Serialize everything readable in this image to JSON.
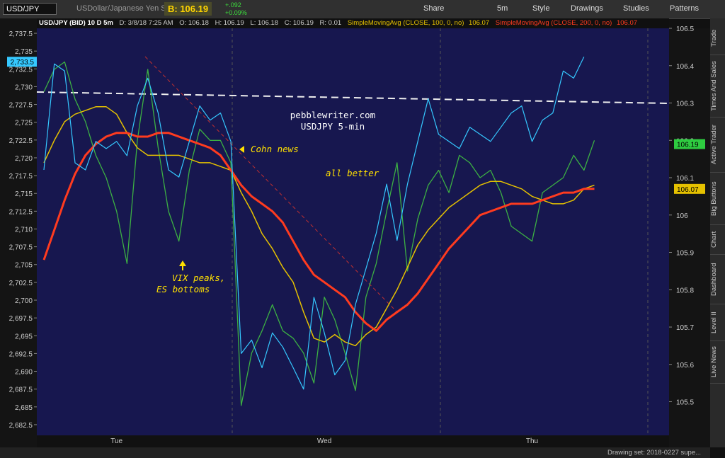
{
  "toolbar": {
    "symbol": "USD/JPY",
    "description": "USDollar/Japanese Yen Spot",
    "bid": "B: 106.19",
    "change": "+.092",
    "change_pct": "+0.09%",
    "buttons": [
      "Share",
      "5m",
      "Style",
      "Drawings",
      "Studies",
      "Patterns"
    ]
  },
  "header": {
    "items": [
      "USD/JPY (BID) 10 D 5m",
      "D: 3/8/18 7:25 AM",
      "O: 106.18",
      "H: 106.19",
      "L: 106.18",
      "C: 106.19",
      "R: 0.01"
    ],
    "sma100_value": "106.07",
    "sma200_value": "106.07"
  },
  "side_tabs": [
    "Trade",
    "Times And Sales",
    "Active Trader",
    "Big Buttons",
    "Chart",
    "Dashboard",
    "Level II",
    "Live News"
  ],
  "status": "Drawing set: 2018-0227 supe...",
  "chart_data": {
    "type": "line",
    "categories": [
      null,
      null,
      null,
      null,
      null,
      null,
      null,
      "Tue",
      null,
      null,
      null,
      null,
      null,
      null,
      null,
      null,
      null,
      null,
      null,
      null,
      null,
      null,
      null,
      null,
      null,
      null,
      null,
      "Wed",
      null,
      null,
      null,
      null,
      null,
      null,
      null,
      null,
      null,
      null,
      null,
      null,
      null,
      null,
      null,
      null,
      null,
      null,
      null,
      "Thu",
      null,
      null,
      null,
      null,
      null,
      null,
      null,
      null,
      null,
      null,
      null,
      null,
      null
    ],
    "series": [
      {
        "color": "#3cb043",
        "values": [
          106.33,
          106.39,
          106.41,
          106.31,
          106.25,
          106.16,
          106.1,
          106.01,
          105.87,
          106.2,
          106.39,
          106.18,
          106.01,
          105.93,
          106.12,
          106.23,
          106.2,
          106.2,
          106.14,
          105.49,
          105.63,
          105.69,
          105.76,
          105.69,
          105.67,
          105.63,
          105.55,
          105.78,
          105.72,
          105.63,
          105.53,
          105.78,
          105.87,
          106.01,
          106.14,
          105.85,
          105.99,
          106.08,
          106.12,
          106.06,
          106.16,
          106.14,
          106.1,
          106.12,
          106.06,
          105.97,
          105.95,
          105.93,
          106.06,
          106.08,
          106.1,
          106.16,
          106.12,
          106.2,
          null,
          null,
          null,
          null,
          null,
          null,
          null
        ]
      },
      {
        "name": "SimpleMovingAvg (CLOSE, 100, 0, no)",
        "color": "#e5c100",
        "values": [
          106.14,
          106.2,
          106.25,
          106.27,
          106.28,
          106.29,
          106.29,
          106.27,
          106.22,
          106.18,
          106.16,
          106.16,
          106.16,
          106.16,
          106.15,
          106.14,
          106.14,
          106.13,
          106.12,
          106.06,
          106.01,
          105.95,
          105.91,
          105.86,
          105.82,
          105.74,
          105.67,
          105.66,
          105.68,
          105.66,
          105.65,
          105.68,
          105.7,
          105.75,
          105.8,
          105.86,
          105.92,
          105.96,
          105.99,
          106.02,
          106.04,
          106.06,
          106.08,
          106.09,
          106.09,
          106.08,
          106.07,
          106.05,
          106.04,
          106.03,
          106.03,
          106.04,
          106.07,
          106.08,
          null,
          null,
          null,
          null,
          null,
          null,
          null
        ]
      },
      {
        "name": "SimpleMovingAvg (CLOSE, 200, 0, no)",
        "color": "#ff3b1f",
        "values": [
          105.88,
          105.96,
          106.04,
          106.11,
          106.16,
          106.19,
          106.21,
          106.22,
          106.22,
          106.21,
          106.21,
          106.22,
          106.22,
          106.21,
          106.2,
          106.19,
          106.18,
          106.16,
          106.12,
          106.08,
          106.05,
          106.03,
          106.01,
          105.98,
          105.93,
          105.88,
          105.84,
          105.82,
          105.8,
          105.78,
          105.74,
          105.71,
          105.69,
          105.72,
          105.74,
          105.76,
          105.79,
          105.83,
          105.87,
          105.91,
          105.94,
          105.97,
          106.0,
          106.01,
          106.02,
          106.03,
          106.03,
          106.03,
          106.04,
          106.05,
          106.06,
          106.06,
          106.07,
          106.07,
          null,
          null,
          null,
          null,
          null,
          null,
          null
        ]
      },
      {
        "color": "#35c8ff",
        "axis": "y2",
        "values": [
          2718.3,
          2733.2,
          2732.2,
          2719.3,
          2718.3,
          2722.3,
          2721.3,
          2722.3,
          2720.3,
          2727.3,
          2731.2,
          2726.3,
          2718.3,
          2717.3,
          2722.3,
          2727.3,
          2725.3,
          2726.3,
          2722.3,
          2692.5,
          2694.4,
          2690.5,
          2695.4,
          2693.4,
          2690.5,
          2687.5,
          2700.4,
          2695.4,
          2689.5,
          2691.5,
          2699.4,
          2704.4,
          2709.4,
          2716.3,
          2708.4,
          2716.3,
          2722.3,
          2728.3,
          2723.3,
          2722.3,
          2721.3,
          2724.3,
          2723.3,
          2722.3,
          2724.3,
          2726.3,
          2727.3,
          2722.3,
          2725.3,
          2726.3,
          2732.2,
          2731.2,
          2734.2,
          null,
          null,
          null,
          null,
          null,
          null,
          null,
          null
        ]
      }
    ],
    "ylim": [
      105.41,
      106.5
    ],
    "yticks": [
      106.5,
      106.4,
      106.3,
      106.2,
      106.1,
      106,
      105.9,
      105.8,
      105.7,
      105.6,
      105.5
    ],
    "y2lim": [
      2681,
      2738.2
    ],
    "y2ticks": [
      {
        "value": 2737.5,
        "label": "2,737.5"
      },
      {
        "value": 2735,
        "label": "2,735"
      },
      {
        "value": 2732.5,
        "label": "2,732.5"
      },
      {
        "value": 2730,
        "label": "2,730"
      },
      {
        "value": 2727.5,
        "label": "2,727.5"
      },
      {
        "value": 2725,
        "label": "2,725"
      },
      {
        "value": 2722.5,
        "label": "2,722.5"
      },
      {
        "value": 2720,
        "label": "2,720"
      },
      {
        "value": 2717.5,
        "label": "2,717.5"
      },
      {
        "value": 2715,
        "label": "2,715"
      },
      {
        "value": 2712.5,
        "label": "2,712.5"
      },
      {
        "value": 2710,
        "label": "2,710"
      },
      {
        "value": 2707.5,
        "label": "2,707.5"
      },
      {
        "value": 2705,
        "label": "2,705"
      },
      {
        "value": 2702.5,
        "label": "2,702.5"
      },
      {
        "value": 2700,
        "label": "2,700"
      },
      {
        "value": 2697.5,
        "label": "2,697.5"
      },
      {
        "value": 2695,
        "label": "2,695"
      },
      {
        "value": 2692.5,
        "label": "2,692.5"
      },
      {
        "value": 2690,
        "label": "2,690"
      },
      {
        "value": 2687.5,
        "label": "2,687.5"
      },
      {
        "value": 2685,
        "label": "2,685"
      },
      {
        "value": 2682.5,
        "label": "2,682.5"
      }
    ],
    "price_badges": [
      {
        "value": 106.19,
        "color": "#2ecc40"
      },
      {
        "value": 106.07,
        "color": "#e5c100"
      }
    ],
    "y2_badge": {
      "value": 2733.5,
      "label": "2,733.5",
      "color": "#35c8ff"
    },
    "annotations": [
      "pebblewriter.com",
      "USDJPY 5-min",
      "Cohn news",
      "all better",
      "VIX peaks,",
      "ES bottoms"
    ]
  }
}
